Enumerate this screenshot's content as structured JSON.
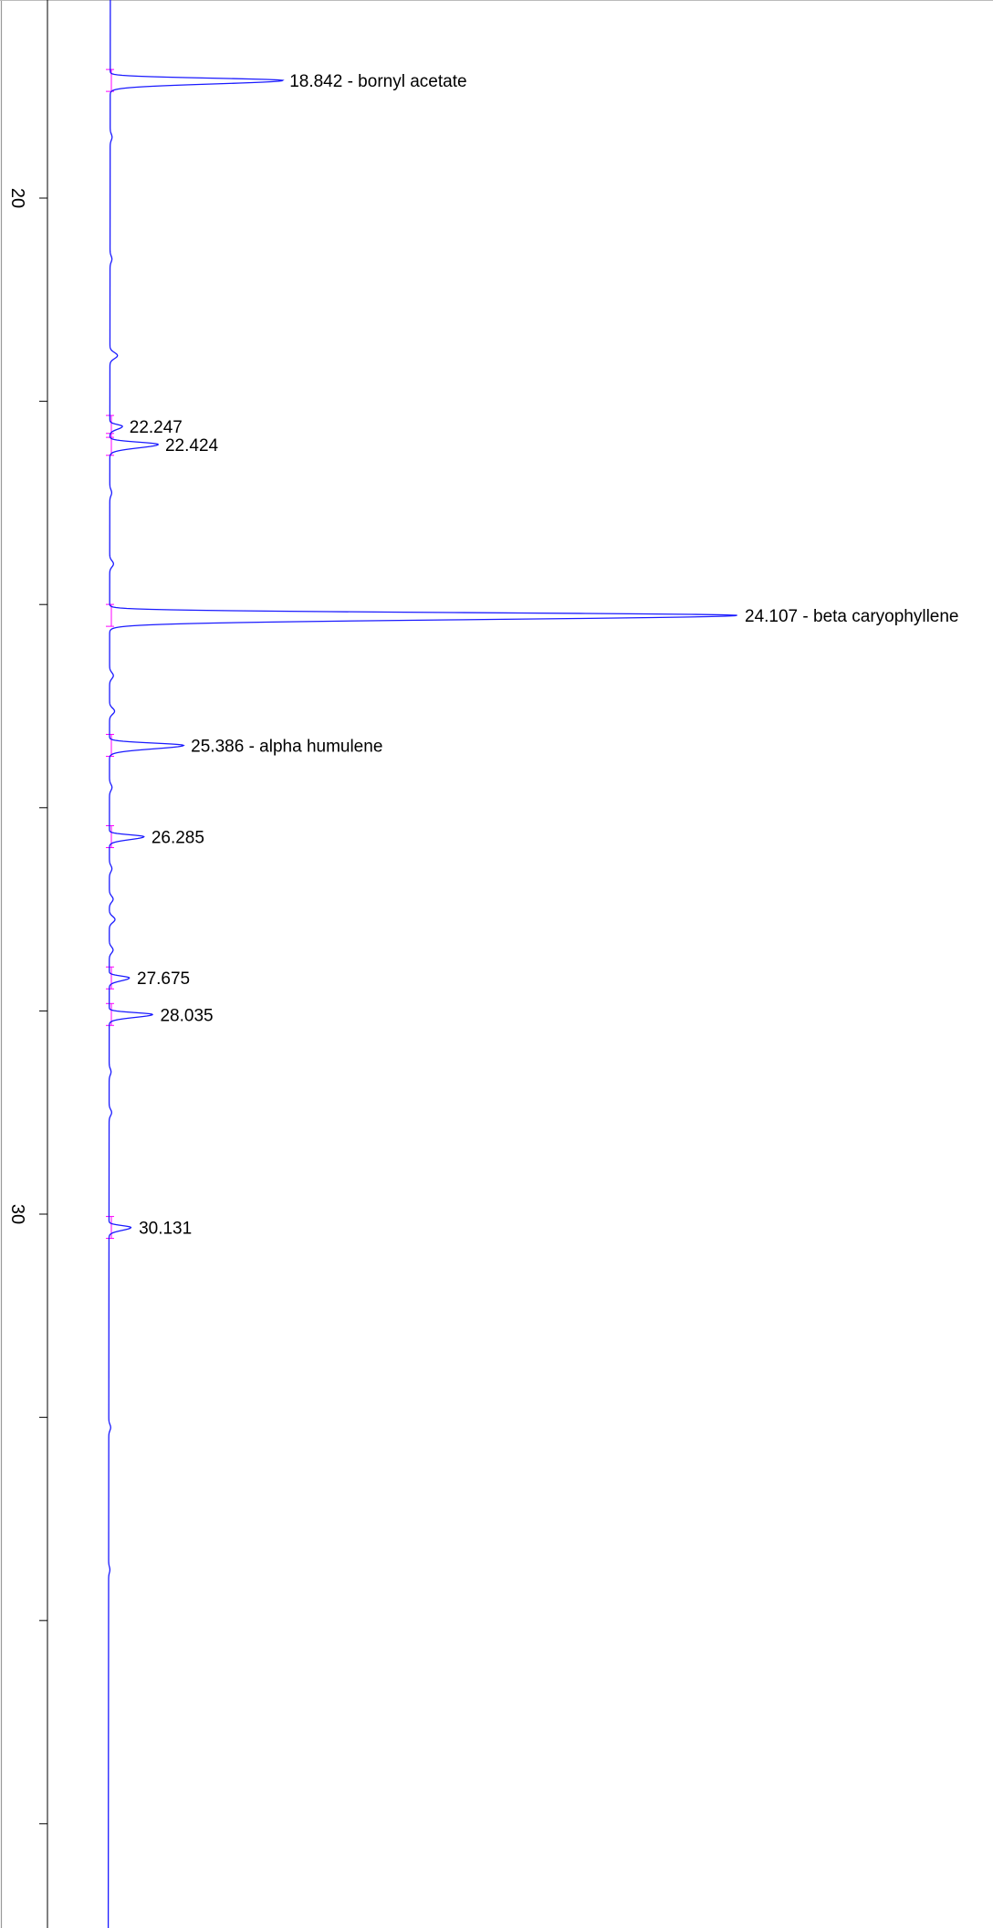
{
  "chart_data": {
    "type": "line",
    "orientation": "vertical-time-axis",
    "title": "",
    "xlabel": "",
    "ylabel": "",
    "time_range": [
      17.04,
      36.5
    ],
    "major_ticks": [
      20,
      30
    ],
    "tick_labels": [
      "20",
      "30"
    ],
    "minor_tick_step": 2,
    "colors": {
      "trace": "#1a1aff",
      "baseline": "#ff00ff",
      "axis": "#000000"
    },
    "peaks": [
      {
        "rt": 18.842,
        "height": 0.275,
        "width": 0.06,
        "label": "18.842 -  bornyl acetate"
      },
      {
        "rt": 22.247,
        "height": 0.02,
        "width": 0.05,
        "label": "22.247"
      },
      {
        "rt": 22.424,
        "height": 0.077,
        "width": 0.06,
        "label": "22.424"
      },
      {
        "rt": 24.107,
        "height": 1.0,
        "width": 0.07,
        "label": "24.107 -  beta caryophyllene"
      },
      {
        "rt": 25.386,
        "height": 0.118,
        "width": 0.06,
        "label": "25.386 -  alpha humulene"
      },
      {
        "rt": 26.285,
        "height": 0.055,
        "width": 0.05,
        "label": "26.285"
      },
      {
        "rt": 27.675,
        "height": 0.032,
        "width": 0.05,
        "label": "27.675"
      },
      {
        "rt": 28.035,
        "height": 0.069,
        "width": 0.05,
        "label": "28.035"
      },
      {
        "rt": 30.131,
        "height": 0.035,
        "width": 0.05,
        "label": "30.131"
      }
    ]
  }
}
